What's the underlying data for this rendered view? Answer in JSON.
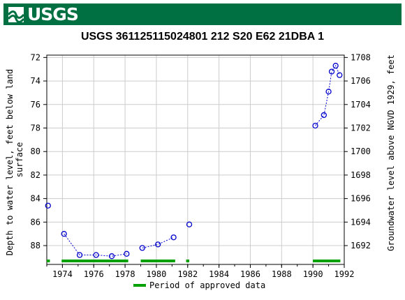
{
  "banner": {
    "logo_text": "USGS",
    "color": "#006f41"
  },
  "chart_data": {
    "type": "scatter",
    "title": "USGS 361125115024801 212  S20 E62 21DBA 1",
    "ylabel_left": "Depth to water level, feet below land surface",
    "ylabel_left_lines": [
      "Depth to water level, feet below land",
      "surface"
    ],
    "ylabel_right": "Groundwater level above NGVD 1929, feet",
    "x_range": [
      1973.0,
      1992.0
    ],
    "y_left_range": [
      89.6,
      71.8
    ],
    "y_right_range": [
      1690.4,
      1708.2
    ],
    "x_ticks": [
      "1974",
      "1976",
      "1978",
      "1980",
      "1982",
      "1984",
      "1986",
      "1988",
      "1990",
      "1992"
    ],
    "y_left_ticks": [
      "72",
      "74",
      "76",
      "78",
      "80",
      "82",
      "84",
      "86",
      "88"
    ],
    "y_right_ticks": [
      "1692",
      "1694",
      "1696",
      "1698",
      "1700",
      "1702",
      "1704",
      "1706",
      "1708"
    ],
    "grid": true,
    "marker_color": "#0000cc",
    "approved_color": "#00a000",
    "series": [
      {
        "name": "",
        "segments": [
          [
            [
              1973.08,
              84.6
            ]
          ],
          [
            [
              1974.1,
              87.0
            ],
            [
              1975.1,
              88.8
            ],
            [
              1976.15,
              88.8
            ],
            [
              1977.15,
              88.9
            ],
            [
              1978.1,
              88.7
            ]
          ],
          [
            [
              1979.1,
              88.2
            ],
            [
              1980.1,
              87.9
            ],
            [
              1981.1,
              87.3
            ]
          ],
          [
            [
              1982.1,
              86.2
            ]
          ],
          [
            [
              1990.15,
              77.8
            ],
            [
              1990.7,
              76.9
            ],
            [
              1991.0,
              74.9
            ],
            [
              1991.2,
              73.2
            ],
            [
              1991.45,
              72.7
            ],
            [
              1991.7,
              73.5
            ]
          ]
        ]
      }
    ],
    "approved_periods": [
      [
        1973.0,
        1973.2
      ],
      [
        1973.95,
        1978.2
      ],
      [
        1979.0,
        1981.2
      ],
      [
        1981.9,
        1982.1
      ],
      [
        1990.0,
        1991.75
      ]
    ],
    "legend": {
      "label": "Period of approved data",
      "placement": "bottom"
    }
  }
}
